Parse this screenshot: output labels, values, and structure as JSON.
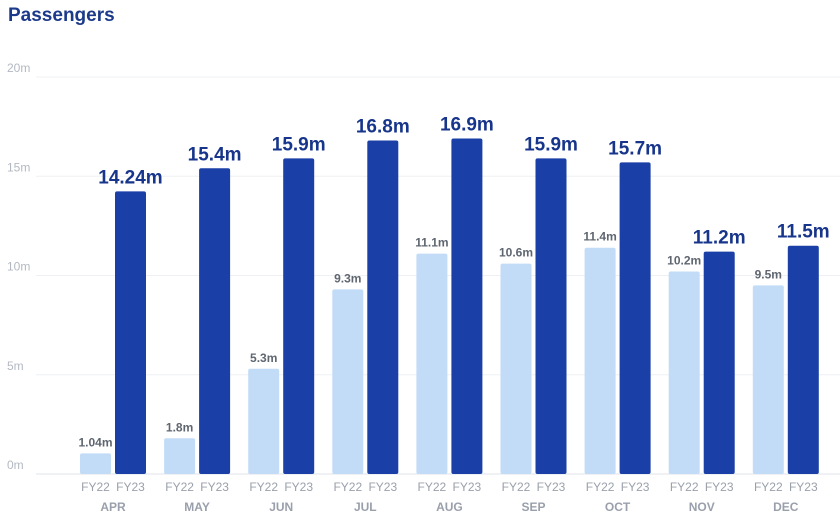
{
  "title": "Passengers",
  "chart_data": {
    "type": "bar",
    "title": "Passengers",
    "categories": [
      "APR",
      "MAY",
      "JUN",
      "JUL",
      "AUG",
      "SEP",
      "OCT",
      "NOV",
      "DEC"
    ],
    "series_labels": [
      "FY22",
      "FY23"
    ],
    "series": [
      {
        "name": "FY22",
        "color": "#c2dcf7",
        "values": [
          1.04,
          1.8,
          5.3,
          9.3,
          11.1,
          10.6,
          11.4,
          10.2,
          9.5
        ],
        "labels": [
          "1.04m",
          "1.8m",
          "5.3m",
          "9.3m",
          "11.1m",
          "10.6m",
          "11.4m",
          "10.2m",
          "9.5m"
        ]
      },
      {
        "name": "FY23",
        "color": "#1a3fa6",
        "values": [
          14.24,
          15.4,
          15.9,
          16.8,
          16.9,
          15.9,
          15.7,
          11.2,
          11.5
        ],
        "labels": [
          "14.24m",
          "15.4m",
          "15.9m",
          "16.8m",
          "16.9m",
          "15.9m",
          "15.7m",
          "11.2m",
          "11.5m"
        ]
      }
    ],
    "ylim": [
      0,
      20
    ],
    "yticks": [
      0,
      5,
      10,
      15,
      20
    ],
    "ytick_labels": [
      "0m",
      "5m",
      "10m",
      "15m",
      "20m"
    ],
    "grid": true,
    "legend": "none"
  }
}
